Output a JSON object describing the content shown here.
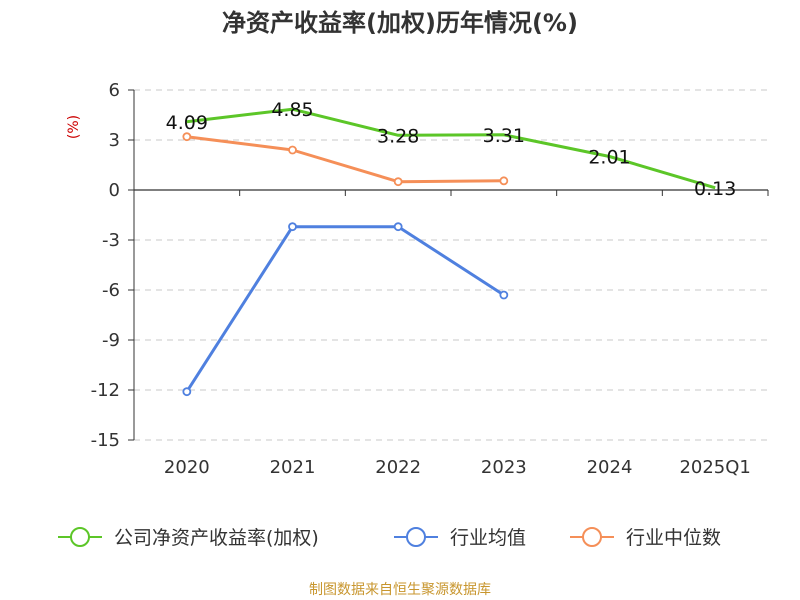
{
  "chart_data": {
    "type": "line",
    "title": "净资产收益率(加权)历年情况(%)",
    "ylabel": "(%)",
    "categories": [
      "2020",
      "2021",
      "2022",
      "2023",
      "2024",
      "2025Q1"
    ],
    "ylim": [
      -15,
      6
    ],
    "yticks": [
      6,
      3,
      0,
      -3,
      -6,
      -9,
      -12,
      -15
    ],
    "grid": true,
    "legend_position": "bottom",
    "series": [
      {
        "name": "公司净资产收益率(加权)",
        "color": "#5cc628",
        "values": [
          4.09,
          4.85,
          3.28,
          3.31,
          2.01,
          0.13
        ],
        "labels": [
          "4.09",
          "4.85",
          "3.28",
          "3.31",
          "2.01",
          "0.13"
        ]
      },
      {
        "name": "行业均值",
        "color": "#4f80df",
        "values": [
          -12.1,
          -2.2,
          -2.2,
          -6.3,
          null,
          null
        ]
      },
      {
        "name": "行业中位数",
        "color": "#f58f58",
        "values": [
          3.2,
          2.4,
          0.5,
          0.55,
          null,
          null
        ]
      }
    ]
  },
  "source": "制图数据来自恒生聚源数据库"
}
